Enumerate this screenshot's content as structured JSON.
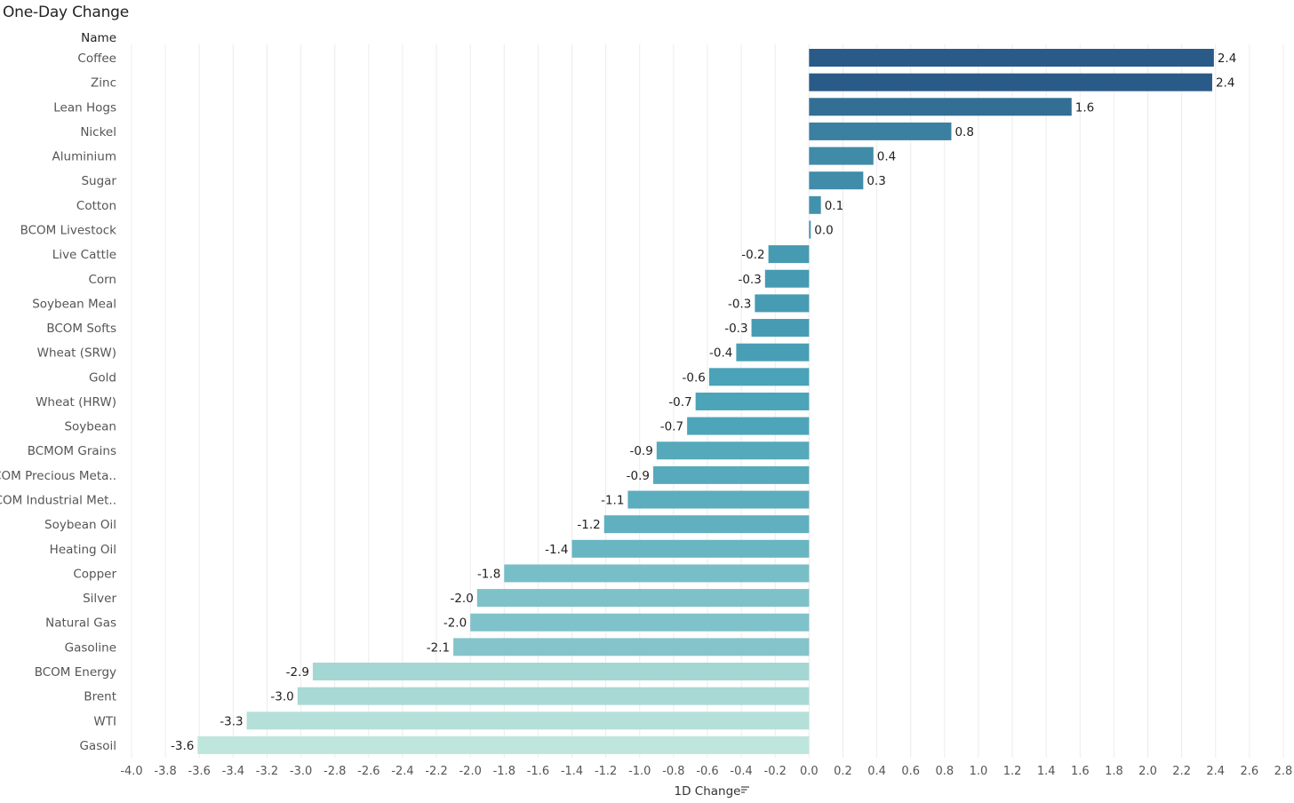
{
  "title": "One-Day Change",
  "chart_data": {
    "type": "bar",
    "orientation": "horizontal",
    "row_header": "Name",
    "xlabel": "1D Change",
    "sort_icon": "sort-descending-icon",
    "xlim": [
      -4.0,
      2.8
    ],
    "x_ticks": [
      "-4.0",
      "-3.8",
      "-3.6",
      "-3.4",
      "-3.2",
      "-3.0",
      "-2.8",
      "-2.6",
      "-2.4",
      "-2.2",
      "-2.0",
      "-1.8",
      "-1.6",
      "-1.4",
      "-1.2",
      "-1.0",
      "-0.8",
      "-0.6",
      "-0.4",
      "-0.2",
      "0.0",
      "0.2",
      "0.4",
      "0.6",
      "0.8",
      "1.0",
      "1.2",
      "1.4",
      "1.6",
      "1.8",
      "2.0",
      "2.2",
      "2.4",
      "2.6",
      "2.8"
    ],
    "grid": "vertical",
    "color_scale": {
      "low": "#bfe6dc",
      "mid": "#4aa3b8",
      "high": "#2a5a87"
    },
    "categories": [
      "Coffee",
      "Zinc",
      "Lean Hogs",
      "Nickel",
      "Aluminium",
      "Sugar",
      "Cotton",
      "BCOM Livestock",
      "Live Cattle",
      "Corn",
      "Soybean Meal",
      "BCOM Softs",
      "Wheat (SRW)",
      "Gold",
      "Wheat (HRW)",
      "Soybean",
      "BCMOM Grains",
      "BCOM Precious Meta..",
      "BCOM Industrial Met..",
      "Soybean Oil",
      "Heating Oil",
      "Copper",
      "Silver",
      "Natural Gas",
      "Gasoline",
      "BCOM Energy",
      "Brent",
      "WTI",
      "Gasoil"
    ],
    "values": [
      2.39,
      2.38,
      1.55,
      0.84,
      0.38,
      0.32,
      0.07,
      0.01,
      -0.24,
      -0.26,
      -0.32,
      -0.34,
      -0.43,
      -0.59,
      -0.67,
      -0.72,
      -0.9,
      -0.92,
      -1.07,
      -1.21,
      -1.4,
      -1.8,
      -1.96,
      -2.0,
      -2.1,
      -2.93,
      -3.02,
      -3.32,
      -3.61
    ],
    "value_labels": [
      "2.4",
      "2.4",
      "1.6",
      "0.8",
      "0.4",
      "0.3",
      "0.1",
      "0.0",
      "-0.2",
      "-0.3",
      "-0.3",
      "-0.3",
      "-0.4",
      "-0.6",
      "-0.7",
      "-0.7",
      "-0.9",
      "-0.9",
      "-1.1",
      "-1.2",
      "-1.4",
      "-1.8",
      "-2.0",
      "-2.0",
      "-2.1",
      "-2.9",
      "-3.0",
      "-3.3",
      "-3.6"
    ]
  }
}
